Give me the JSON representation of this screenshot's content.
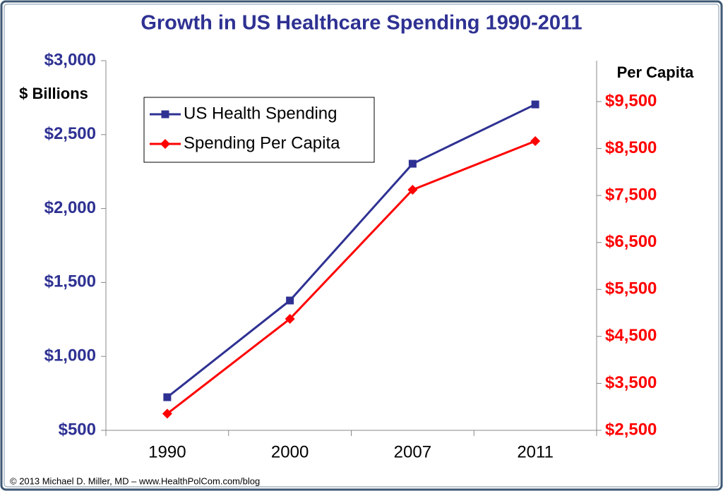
{
  "chart_data": {
    "type": "line",
    "title": "Growth in US Healthcare Spending 1990-2011",
    "y_label": "$ Billions",
    "y2_label": "Per Capita",
    "footer": "© 2013 Michael D. Miller, MD – www.HealthPolCom.com/blog",
    "categories": [
      "1990",
      "2000",
      "2007",
      "2011"
    ],
    "series": [
      {
        "name": "US Health Spending",
        "color": "#2e3192",
        "marker": "square",
        "values": [
          724,
          1378,
          2303,
          2704
        ]
      },
      {
        "name": "Spending Per Capita",
        "color": "#ff0000",
        "marker": "diamond",
        "axis": "y2",
        "values": [
          2854,
          4873,
          7622,
          8659
        ]
      }
    ],
    "ylim": [
      500,
      3000
    ],
    "yticks": [
      {
        "value": 500,
        "label": "$500"
      },
      {
        "value": 1000,
        "label": "$1,000"
      },
      {
        "value": 1500,
        "label": "$1,500"
      },
      {
        "value": 2000,
        "label": "$2,000"
      },
      {
        "value": 2500,
        "label": "$2,500"
      },
      {
        "value": 3000,
        "label": "$3,000"
      }
    ],
    "y2lim": [
      2500,
      10371
    ],
    "y2ticks": [
      {
        "value": 2500,
        "label": "$2,500"
      },
      {
        "value": 3500,
        "label": "$3,500"
      },
      {
        "value": 4500,
        "label": "$4,500"
      },
      {
        "value": 5500,
        "label": "$5,500"
      },
      {
        "value": 6500,
        "label": "$6,500"
      },
      {
        "value": 7500,
        "label": "$7,500"
      },
      {
        "value": 8500,
        "label": "$8,500"
      },
      {
        "value": 9500,
        "label": "$9,500"
      }
    ],
    "y_axis_color": "#2e3192",
    "y2_axis_color": "#ff0000",
    "legend": "upper left",
    "grid": false
  }
}
